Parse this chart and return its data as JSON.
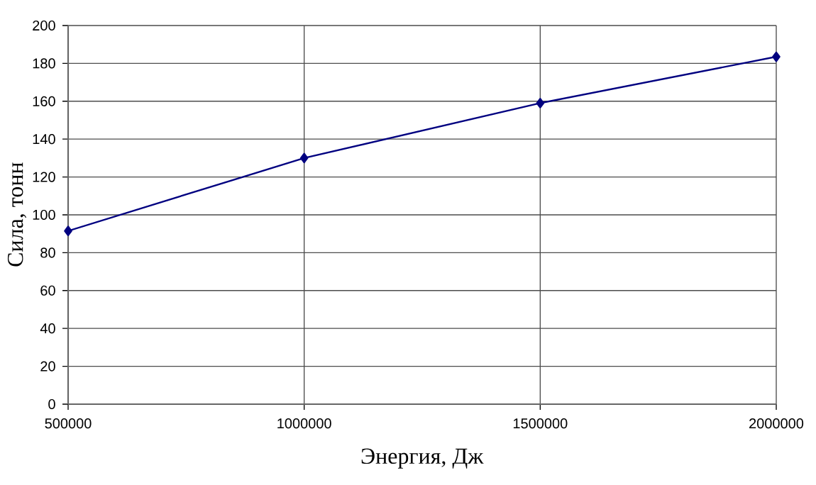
{
  "chart_data": {
    "type": "line",
    "xlabel": "Энергия, Дж",
    "ylabel": "Сила, тонн",
    "x": [
      500000,
      1000000,
      1500000,
      2000000
    ],
    "series": [
      {
        "color": "#000080",
        "values": [
          91.5,
          130,
          159,
          183.5
        ]
      }
    ],
    "xlim": [
      500000,
      2000000
    ],
    "xticks": [
      500000,
      1000000,
      1500000,
      2000000
    ],
    "ylim": [
      0,
      200
    ],
    "yticks": [
      0,
      20,
      40,
      60,
      80,
      100,
      120,
      140,
      160,
      180,
      200
    ],
    "grid": true,
    "marker": "diamond",
    "line_style": "solid"
  }
}
